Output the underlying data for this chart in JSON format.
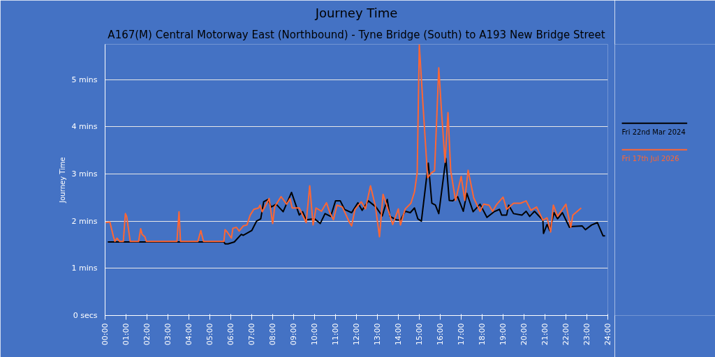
{
  "chart_data": {
    "type": "line",
    "title": "Journey Time",
    "subtitle": "A167(M) Central Motorway East (Northbound) - Tyne Bridge (South) to A193 New Bridge Street",
    "ylabel": "Journey Time",
    "xlim": [
      0,
      24
    ],
    "xticks": [
      {
        "value": 0,
        "label": "00:00"
      },
      {
        "value": 1,
        "label": "01:00"
      },
      {
        "value": 2,
        "label": "02:00"
      },
      {
        "value": 3,
        "label": "03:00"
      },
      {
        "value": 4,
        "label": "04:00"
      },
      {
        "value": 5,
        "label": "05:00"
      },
      {
        "value": 6,
        "label": "06:00"
      },
      {
        "value": 7,
        "label": "07:00"
      },
      {
        "value": 8,
        "label": "08:00"
      },
      {
        "value": 9,
        "label": "09:00"
      },
      {
        "value": 10,
        "label": "10:00"
      },
      {
        "value": 11,
        "label": "11:00"
      },
      {
        "value": 12,
        "label": "12:00"
      },
      {
        "value": 13,
        "label": "13:00"
      },
      {
        "value": 14,
        "label": "14:00"
      },
      {
        "value": 15,
        "label": "15:00"
      },
      {
        "value": 16,
        "label": "16:00"
      },
      {
        "value": 17,
        "label": "17:00"
      },
      {
        "value": 18,
        "label": "18:00"
      },
      {
        "value": 19,
        "label": "19:00"
      },
      {
        "value": 20,
        "label": "20:00"
      },
      {
        "value": 21,
        "label": "21:00"
      },
      {
        "value": 22,
        "label": "22:00"
      },
      {
        "value": 23,
        "label": "23:00"
      },
      {
        "value": 24,
        "label": "24:00"
      }
    ],
    "ylim": [
      0,
      5.75
    ],
    "yticks": [
      {
        "value": 0,
        "label": "0 secs"
      },
      {
        "value": 1,
        "label": "1 mins"
      },
      {
        "value": 2,
        "label": "2 mins"
      },
      {
        "value": 3,
        "label": "3 mins"
      },
      {
        "value": 4,
        "label": "4 mins"
      },
      {
        "value": 5,
        "label": "5 mins"
      }
    ],
    "grid": "y",
    "legend": "right",
    "marker": "none",
    "line_style": "solid",
    "series": [
      {
        "name": "Fri 22nd Mar 2024",
        "color": "#000000",
        "x": [
          0.13,
          5.67,
          5.73,
          5.87,
          6.17,
          6.5,
          6.6,
          7.0,
          7.23,
          7.43,
          7.57,
          7.77,
          7.93,
          8.17,
          8.5,
          8.9,
          9.27,
          9.43,
          9.6,
          10.0,
          10.27,
          10.5,
          10.77,
          11.0,
          11.23,
          11.43,
          11.77,
          12.07,
          12.27,
          12.57,
          12.93,
          13.23,
          13.47,
          13.6,
          13.9,
          14.1,
          14.33,
          14.57,
          14.77,
          14.93,
          15.1,
          15.43,
          15.6,
          15.77,
          15.93,
          16.27,
          16.43,
          16.6,
          16.83,
          17.1,
          17.27,
          17.57,
          17.9,
          18.23,
          18.57,
          18.83,
          18.93,
          19.17,
          19.27,
          19.5,
          19.9,
          20.1,
          20.27,
          20.5,
          20.9,
          20.93,
          21.1,
          21.23,
          21.43,
          21.6,
          21.83,
          22.17,
          22.33,
          22.77,
          22.93,
          23.23,
          23.5,
          23.77,
          23.87
        ],
        "values": [
          1.56,
          1.56,
          1.52,
          1.52,
          1.56,
          1.72,
          1.7,
          1.8,
          2.0,
          2.05,
          2.41,
          2.46,
          2.3,
          2.36,
          2.2,
          2.61,
          2.13,
          2.2,
          2.03,
          2.05,
          1.95,
          2.16,
          2.1,
          2.43,
          2.43,
          2.25,
          2.18,
          2.39,
          2.23,
          2.43,
          2.3,
          2.11,
          2.46,
          2.1,
          2.03,
          2.02,
          2.21,
          2.18,
          2.28,
          2.05,
          2.0,
          3.23,
          2.38,
          2.34,
          2.16,
          3.33,
          2.44,
          2.43,
          2.52,
          2.21,
          2.59,
          2.2,
          2.36,
          2.08,
          2.2,
          2.25,
          2.13,
          2.13,
          2.34,
          2.16,
          2.13,
          2.21,
          2.1,
          2.21,
          2.02,
          1.74,
          1.93,
          1.8,
          2.18,
          2.05,
          2.18,
          1.87,
          1.89,
          1.9,
          1.82,
          1.92,
          1.97,
          1.69,
          1.69
        ]
      },
      {
        "name": "Fri 17th Jul 2026",
        "color": "#ff6633",
        "x": [
          0.03,
          0.23,
          0.4,
          0.47,
          0.57,
          0.7,
          0.87,
          0.97,
          1.03,
          1.2,
          1.6,
          1.7,
          1.77,
          1.9,
          1.97,
          3.43,
          3.53,
          3.6,
          4.43,
          4.57,
          4.7,
          5.67,
          5.73,
          5.83,
          6.03,
          6.1,
          6.27,
          6.4,
          6.6,
          6.77,
          6.93,
          7.1,
          7.33,
          7.4,
          7.5,
          7.67,
          7.83,
          8.0,
          8.1,
          8.4,
          8.67,
          8.83,
          8.93,
          9.27,
          9.6,
          9.77,
          9.93,
          10.07,
          10.33,
          10.57,
          10.73,
          10.9,
          11.07,
          11.33,
          11.67,
          11.77,
          11.93,
          12.23,
          12.43,
          12.67,
          12.9,
          13.1,
          13.27,
          13.57,
          13.73,
          14.0,
          14.1,
          14.33,
          14.6,
          14.77,
          14.9,
          15.0,
          15.17,
          15.4,
          15.57,
          15.73,
          15.93,
          16.07,
          16.23,
          16.37,
          16.5,
          16.73,
          17.0,
          17.17,
          17.33,
          17.6,
          17.9,
          18.07,
          18.33,
          18.5,
          18.67,
          19.0,
          19.17,
          19.5,
          19.83,
          20.1,
          20.33,
          20.6,
          20.9,
          21.1,
          21.27,
          21.4,
          21.6,
          22.0,
          22.23,
          22.33,
          22.73
        ],
        "values": [
          1.97,
          1.98,
          1.67,
          1.57,
          1.64,
          1.57,
          1.57,
          2.16,
          2.1,
          1.57,
          1.57,
          1.84,
          1.72,
          1.67,
          1.57,
          1.57,
          2.2,
          1.57,
          1.57,
          1.8,
          1.57,
          1.57,
          1.82,
          1.77,
          1.64,
          1.85,
          1.87,
          1.79,
          1.9,
          1.92,
          2.13,
          2.25,
          2.28,
          2.34,
          2.2,
          2.34,
          2.48,
          1.95,
          2.31,
          2.52,
          2.36,
          2.48,
          2.28,
          2.28,
          1.97,
          2.75,
          1.92,
          2.28,
          2.21,
          2.39,
          2.18,
          2.03,
          2.34,
          2.3,
          1.97,
          1.9,
          2.25,
          2.41,
          2.26,
          2.75,
          2.33,
          1.67,
          2.57,
          2.16,
          1.93,
          2.26,
          1.92,
          2.26,
          2.38,
          2.62,
          3.03,
          5.74,
          4.51,
          2.92,
          3.02,
          3.07,
          5.25,
          4.26,
          3.25,
          4.3,
          3.07,
          2.44,
          2.95,
          2.44,
          3.08,
          2.49,
          2.21,
          2.36,
          2.34,
          2.21,
          2.34,
          2.51,
          2.25,
          2.38,
          2.38,
          2.43,
          2.23,
          2.3,
          2.02,
          2.07,
          1.77,
          2.34,
          2.1,
          2.36,
          1.87,
          2.13,
          2.28
        ]
      }
    ]
  }
}
